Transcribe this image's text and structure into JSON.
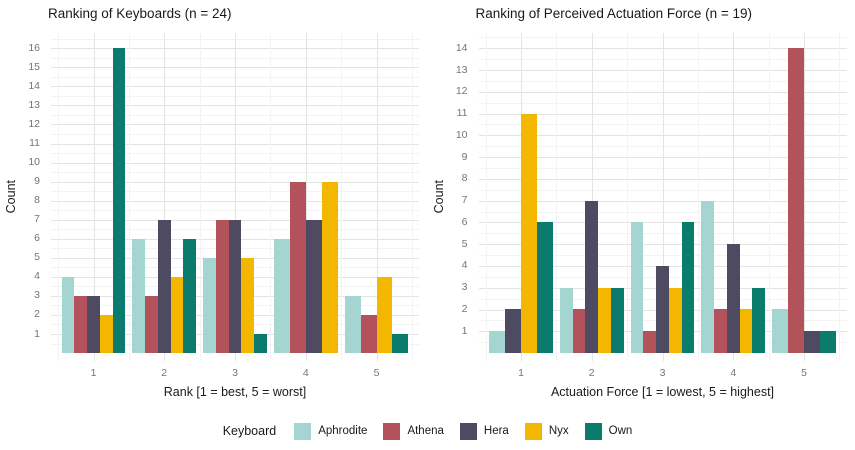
{
  "page": {
    "background": "#ffffff",
    "text_color": "#1a1a1a",
    "tick_color": "#757575",
    "grid_major_color": "#e4e4e4",
    "grid_minor_color": "#f3f3f3"
  },
  "legend": {
    "title": "Keyboard",
    "items": [
      {
        "label": "Aphrodite",
        "color": "#a5d5d0"
      },
      {
        "label": "Athena",
        "color": "#b3525a"
      },
      {
        "label": "Hera",
        "color": "#4e4a62"
      },
      {
        "label": "Nyx",
        "color": "#f3b700"
      },
      {
        "label": "Own",
        "color": "#0a7b6d"
      }
    ]
  },
  "chart_data": [
    {
      "type": "bar",
      "title": "Ranking of Keyboards (n = 24)",
      "xlabel": "Rank [1 = best, 5 = worst]",
      "ylabel": "Count",
      "categories": [
        "1",
        "2",
        "3",
        "4",
        "5"
      ],
      "y_ticks": [
        1,
        2,
        3,
        4,
        5,
        6,
        7,
        8,
        9,
        10,
        11,
        12,
        13,
        14,
        15,
        16
      ],
      "ylim": [
        0,
        16.8
      ],
      "grid": true,
      "legend_position": "bottom-shared",
      "series": [
        {
          "name": "Aphrodite",
          "color": "#a5d5d0",
          "values": [
            4,
            6,
            5,
            6,
            3
          ]
        },
        {
          "name": "Athena",
          "color": "#b3525a",
          "values": [
            3,
            3,
            7,
            9,
            2
          ]
        },
        {
          "name": "Hera",
          "color": "#4e4a62",
          "values": [
            3,
            7,
            7,
            7,
            0
          ]
        },
        {
          "name": "Nyx",
          "color": "#f3b700",
          "values": [
            2,
            4,
            5,
            9,
            4
          ]
        },
        {
          "name": "Own",
          "color": "#0a7b6d",
          "values": [
            16,
            6,
            1,
            0,
            1
          ]
        }
      ]
    },
    {
      "type": "bar",
      "title": "Ranking of Perceived Actuation Force (n = 19)",
      "xlabel": "Actuation Force [1 = lowest, 5 = highest]",
      "ylabel": "Count",
      "categories": [
        "1",
        "2",
        "3",
        "4",
        "5"
      ],
      "y_ticks": [
        1,
        2,
        3,
        4,
        5,
        6,
        7,
        8,
        9,
        10,
        11,
        12,
        13,
        14
      ],
      "ylim": [
        0,
        14.7
      ],
      "grid": true,
      "legend_position": "bottom-shared",
      "series": [
        {
          "name": "Aphrodite",
          "color": "#a5d5d0",
          "values": [
            1,
            3,
            6,
            7,
            2
          ]
        },
        {
          "name": "Athena",
          "color": "#b3525a",
          "values": [
            0,
            2,
            1,
            2,
            14
          ]
        },
        {
          "name": "Hera",
          "color": "#4e4a62",
          "values": [
            2,
            7,
            4,
            5,
            1
          ]
        },
        {
          "name": "Nyx",
          "color": "#f3b700",
          "values": [
            11,
            3,
            3,
            2,
            0
          ]
        },
        {
          "name": "Own",
          "color": "#0a7b6d",
          "values": [
            6,
            3,
            6,
            3,
            1
          ]
        }
      ]
    }
  ]
}
